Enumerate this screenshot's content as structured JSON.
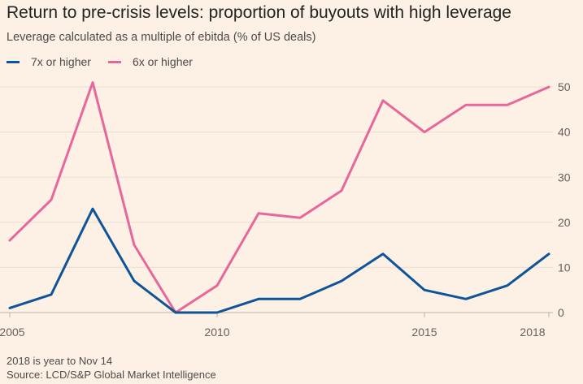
{
  "chart_data": {
    "type": "line",
    "title": "Return to pre-crisis levels: proportion of buyouts with high leverage",
    "subtitle": "Leverage calculated as a multiple of ebitda (% of US deals)",
    "x": [
      2005,
      2006,
      2007,
      2008,
      2009,
      2010,
      2011,
      2012,
      2013,
      2014,
      2015,
      2016,
      2017,
      2018
    ],
    "x_tick_labels": [
      {
        "value": 2005,
        "label": "2005"
      },
      {
        "value": 2010,
        "label": "2010"
      },
      {
        "value": 2015,
        "label": "2015"
      },
      {
        "value": 2018,
        "label": "2018"
      }
    ],
    "y_ticks": [
      0,
      10,
      20,
      30,
      40,
      50
    ],
    "y_tick_labels": [
      "0",
      "10",
      "20",
      "30",
      "40",
      "50"
    ],
    "xlim": [
      2005,
      2018
    ],
    "ylim": [
      0,
      52
    ],
    "grid": true,
    "legend_position": "top-left",
    "series": [
      {
        "name": "7x or higher",
        "color": "#0f5499",
        "values": [
          1,
          4,
          23,
          7,
          0,
          0,
          3,
          3,
          7,
          13,
          5,
          3,
          6,
          13
        ]
      },
      {
        "name": "6x or higher",
        "color": "#e7679a",
        "values": [
          16,
          25,
          51,
          15,
          0,
          6,
          22,
          21,
          27,
          47,
          40,
          46,
          46,
          50
        ]
      }
    ],
    "notes": [
      "2018 is year to Nov 14",
      "Source: LCD/S&P Global Market Intelligence"
    ]
  }
}
